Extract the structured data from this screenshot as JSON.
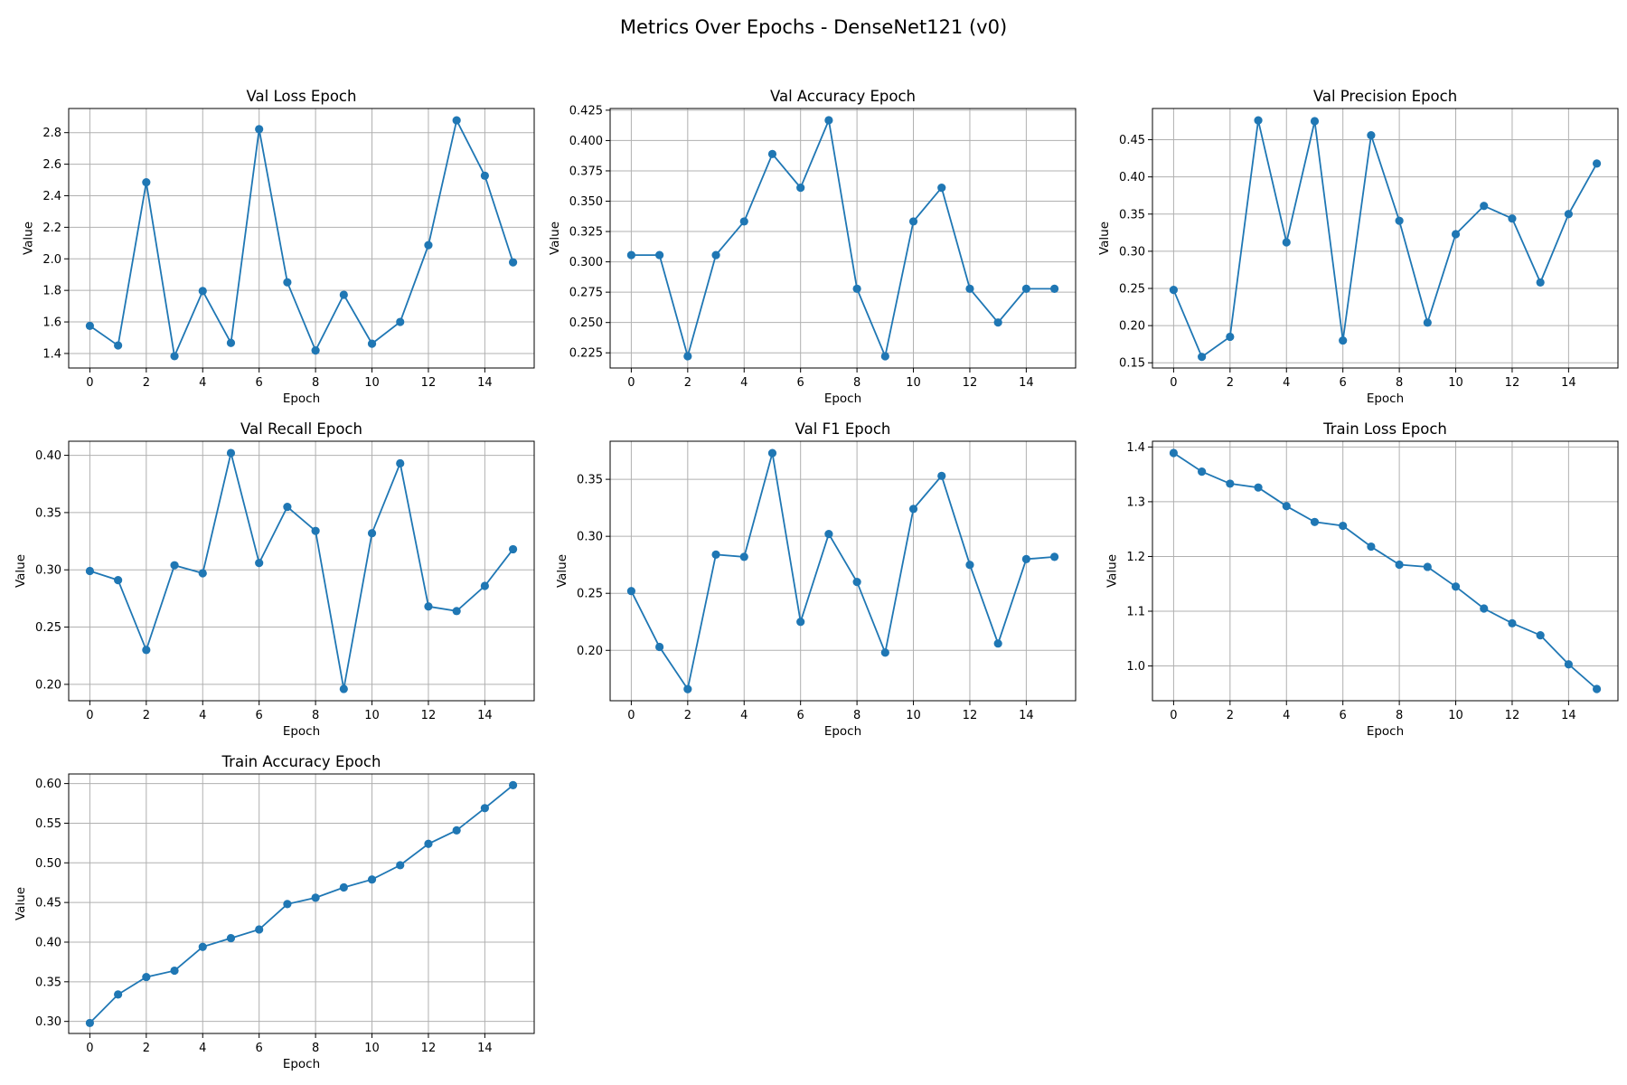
{
  "figure": {
    "suptitle": "Metrics Over Epochs - DenseNet121 (v0)",
    "line_color": "#1f77b4",
    "grid_color": "#b0b0b0"
  },
  "chart_data": [
    {
      "type": "line",
      "title": "Val Loss Epoch",
      "xlabel": "Epoch",
      "ylabel": "Value",
      "x": [
        0,
        1,
        2,
        3,
        4,
        5,
        6,
        7,
        8,
        9,
        10,
        11,
        12,
        13,
        14,
        15
      ],
      "y": [
        1.575,
        1.451,
        2.485,
        1.383,
        1.796,
        1.467,
        2.822,
        1.851,
        1.419,
        1.772,
        1.462,
        1.6,
        2.087,
        2.878,
        2.527,
        1.978
      ],
      "xticks": [
        0,
        2,
        4,
        6,
        8,
        10,
        12,
        14
      ],
      "xtick_labels": [
        "0",
        "2",
        "4",
        "6",
        "8",
        "10",
        "12",
        "14"
      ],
      "yticks": [
        1.4,
        1.6,
        1.8,
        2.0,
        2.2,
        2.4,
        2.6,
        2.8
      ],
      "ytick_labels": [
        "1.4",
        "1.6",
        "1.8",
        "2.0",
        "2.2",
        "2.4",
        "2.6",
        "2.8"
      ],
      "xlim": [
        -0.75,
        15.75
      ],
      "ylim": [
        1.308,
        2.953
      ],
      "grid": true
    },
    {
      "type": "line",
      "title": "Val Accuracy Epoch",
      "xlabel": "Epoch",
      "ylabel": "Value",
      "x": [
        0,
        1,
        2,
        3,
        4,
        5,
        6,
        7,
        8,
        9,
        10,
        11,
        12,
        13,
        14,
        15
      ],
      "y": [
        0.3056,
        0.3056,
        0.2222,
        0.3056,
        0.3333,
        0.3889,
        0.3611,
        0.4167,
        0.2778,
        0.2222,
        0.3333,
        0.3611,
        0.2778,
        0.25,
        0.2778,
        0.2778
      ],
      "xticks": [
        0,
        2,
        4,
        6,
        8,
        10,
        12,
        14
      ],
      "xtick_labels": [
        "0",
        "2",
        "4",
        "6",
        "8",
        "10",
        "12",
        "14"
      ],
      "yticks": [
        0.225,
        0.25,
        0.275,
        0.3,
        0.325,
        0.35,
        0.375,
        0.4,
        0.425
      ],
      "ytick_labels": [
        "0.225",
        "0.250",
        "0.275",
        "0.300",
        "0.325",
        "0.350",
        "0.375",
        "0.400",
        "0.425"
      ],
      "xlim": [
        -0.75,
        15.75
      ],
      "ylim": [
        0.2125,
        0.4264
      ],
      "grid": true
    },
    {
      "type": "line",
      "title": "Val Precision Epoch",
      "xlabel": "Epoch",
      "ylabel": "Value",
      "x": [
        0,
        1,
        2,
        3,
        4,
        5,
        6,
        7,
        8,
        9,
        10,
        11,
        12,
        13,
        14,
        15
      ],
      "y": [
        0.248,
        0.158,
        0.185,
        0.476,
        0.312,
        0.475,
        0.18,
        0.456,
        0.341,
        0.204,
        0.323,
        0.361,
        0.344,
        0.258,
        0.35,
        0.418
      ],
      "xticks": [
        0,
        2,
        4,
        6,
        8,
        10,
        12,
        14
      ],
      "xtick_labels": [
        "0",
        "2",
        "4",
        "6",
        "8",
        "10",
        "12",
        "14"
      ],
      "yticks": [
        0.15,
        0.2,
        0.25,
        0.3,
        0.35,
        0.4,
        0.45
      ],
      "ytick_labels": [
        "0.15",
        "0.20",
        "0.25",
        "0.30",
        "0.35",
        "0.40",
        "0.45"
      ],
      "xlim": [
        -0.75,
        15.75
      ],
      "ylim": [
        0.143,
        0.492
      ],
      "grid": true
    },
    {
      "type": "line",
      "title": "Val Recall Epoch",
      "xlabel": "Epoch",
      "ylabel": "Value",
      "x": [
        0,
        1,
        2,
        3,
        4,
        5,
        6,
        7,
        8,
        9,
        10,
        11,
        12,
        13,
        14,
        15
      ],
      "y": [
        0.299,
        0.291,
        0.23,
        0.304,
        0.297,
        0.402,
        0.306,
        0.355,
        0.334,
        0.196,
        0.332,
        0.393,
        0.268,
        0.264,
        0.286,
        0.318
      ],
      "xticks": [
        0,
        2,
        4,
        6,
        8,
        10,
        12,
        14
      ],
      "xtick_labels": [
        "0",
        "2",
        "4",
        "6",
        "8",
        "10",
        "12",
        "14"
      ],
      "yticks": [
        0.2,
        0.25,
        0.3,
        0.35,
        0.4
      ],
      "ytick_labels": [
        "0.20",
        "0.25",
        "0.30",
        "0.35",
        "0.40"
      ],
      "xlim": [
        -0.75,
        15.75
      ],
      "ylim": [
        0.1857,
        0.4123
      ],
      "grid": true
    },
    {
      "type": "line",
      "title": "Val F1 Epoch",
      "xlabel": "Epoch",
      "ylabel": "Value",
      "x": [
        0,
        1,
        2,
        3,
        4,
        5,
        6,
        7,
        8,
        9,
        10,
        11,
        12,
        13,
        14,
        15
      ],
      "y": [
        0.252,
        0.203,
        0.166,
        0.284,
        0.282,
        0.373,
        0.225,
        0.302,
        0.26,
        0.198,
        0.324,
        0.353,
        0.275,
        0.206,
        0.28,
        0.282
      ],
      "xticks": [
        0,
        2,
        4,
        6,
        8,
        10,
        12,
        14
      ],
      "xtick_labels": [
        "0",
        "2",
        "4",
        "6",
        "8",
        "10",
        "12",
        "14"
      ],
      "yticks": [
        0.2,
        0.25,
        0.3,
        0.35
      ],
      "ytick_labels": [
        "0.20",
        "0.25",
        "0.30",
        "0.35"
      ],
      "xlim": [
        -0.75,
        15.75
      ],
      "ylim": [
        0.1558,
        0.3834
      ],
      "grid": true
    },
    {
      "type": "line",
      "title": "Train Loss Epoch",
      "xlabel": "Epoch",
      "ylabel": "Value",
      "x": [
        0,
        1,
        2,
        3,
        4,
        5,
        6,
        7,
        8,
        9,
        10,
        11,
        12,
        13,
        14,
        15
      ],
      "y": [
        1.389,
        1.355,
        1.333,
        1.326,
        1.292,
        1.263,
        1.256,
        1.218,
        1.185,
        1.181,
        1.145,
        1.105,
        1.078,
        1.056,
        1.003,
        0.958
      ],
      "xticks": [
        0,
        2,
        4,
        6,
        8,
        10,
        12,
        14
      ],
      "xtick_labels": [
        "0",
        "2",
        "4",
        "6",
        "8",
        "10",
        "12",
        "14"
      ],
      "yticks": [
        1.0,
        1.1,
        1.2,
        1.3,
        1.4
      ],
      "ytick_labels": [
        "1.0",
        "1.1",
        "1.2",
        "1.3",
        "1.4"
      ],
      "xlim": [
        -0.75,
        15.75
      ],
      "ylim": [
        0.9365,
        1.4105
      ],
      "grid": true
    },
    {
      "type": "line",
      "title": "Train Accuracy Epoch",
      "xlabel": "Epoch",
      "ylabel": "Value",
      "x": [
        0,
        1,
        2,
        3,
        4,
        5,
        6,
        7,
        8,
        9,
        10,
        11,
        12,
        13,
        14,
        15
      ],
      "y": [
        0.298,
        0.334,
        0.356,
        0.364,
        0.394,
        0.405,
        0.416,
        0.448,
        0.456,
        0.469,
        0.479,
        0.497,
        0.524,
        0.541,
        0.569,
        0.598
      ],
      "xticks": [
        0,
        2,
        4,
        6,
        8,
        10,
        12,
        14
      ],
      "xtick_labels": [
        "0",
        "2",
        "4",
        "6",
        "8",
        "10",
        "12",
        "14"
      ],
      "yticks": [
        0.3,
        0.35,
        0.4,
        0.45,
        0.5,
        0.55,
        0.6
      ],
      "ytick_labels": [
        "0.30",
        "0.35",
        "0.40",
        "0.45",
        "0.50",
        "0.55",
        "0.60"
      ],
      "xlim": [
        -0.75,
        15.75
      ],
      "ylim": [
        0.2848,
        0.6121
      ],
      "grid": true
    }
  ]
}
